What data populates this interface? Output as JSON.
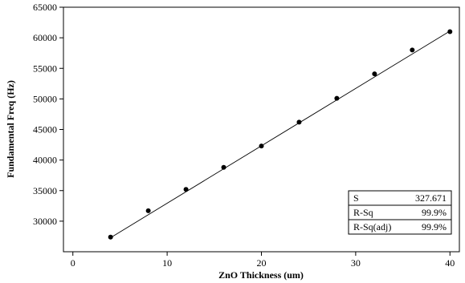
{
  "chart_data": {
    "type": "scatter",
    "xlabel": "ZnO Thickness (um)",
    "ylabel": "Fundamental Freq (Hz)",
    "xlim": [
      -1,
      41
    ],
    "ylim": [
      25000,
      65000
    ],
    "x_ticks": [
      0,
      10,
      20,
      30,
      40
    ],
    "y_ticks": [
      30000,
      35000,
      40000,
      45000,
      50000,
      55000,
      60000,
      65000
    ],
    "grid": false,
    "series": [
      {
        "type": "scatter",
        "x": [
          4,
          8,
          12,
          16,
          20,
          24,
          28,
          32,
          36,
          40
        ],
        "y": [
          27400,
          31700,
          35200,
          38800,
          42300,
          46200,
          50100,
          54100,
          58000,
          61000
        ]
      },
      {
        "type": "line",
        "x": [
          4,
          40
        ],
        "y": [
          27300,
          61100
        ]
      }
    ],
    "stats_box": {
      "position": "bottom-right",
      "rows": [
        {
          "label": "S",
          "value": "327.671"
        },
        {
          "label": "R-Sq",
          "value": "99.9%"
        },
        {
          "label": "R-Sq(adj)",
          "value": "99.9%"
        }
      ]
    }
  }
}
